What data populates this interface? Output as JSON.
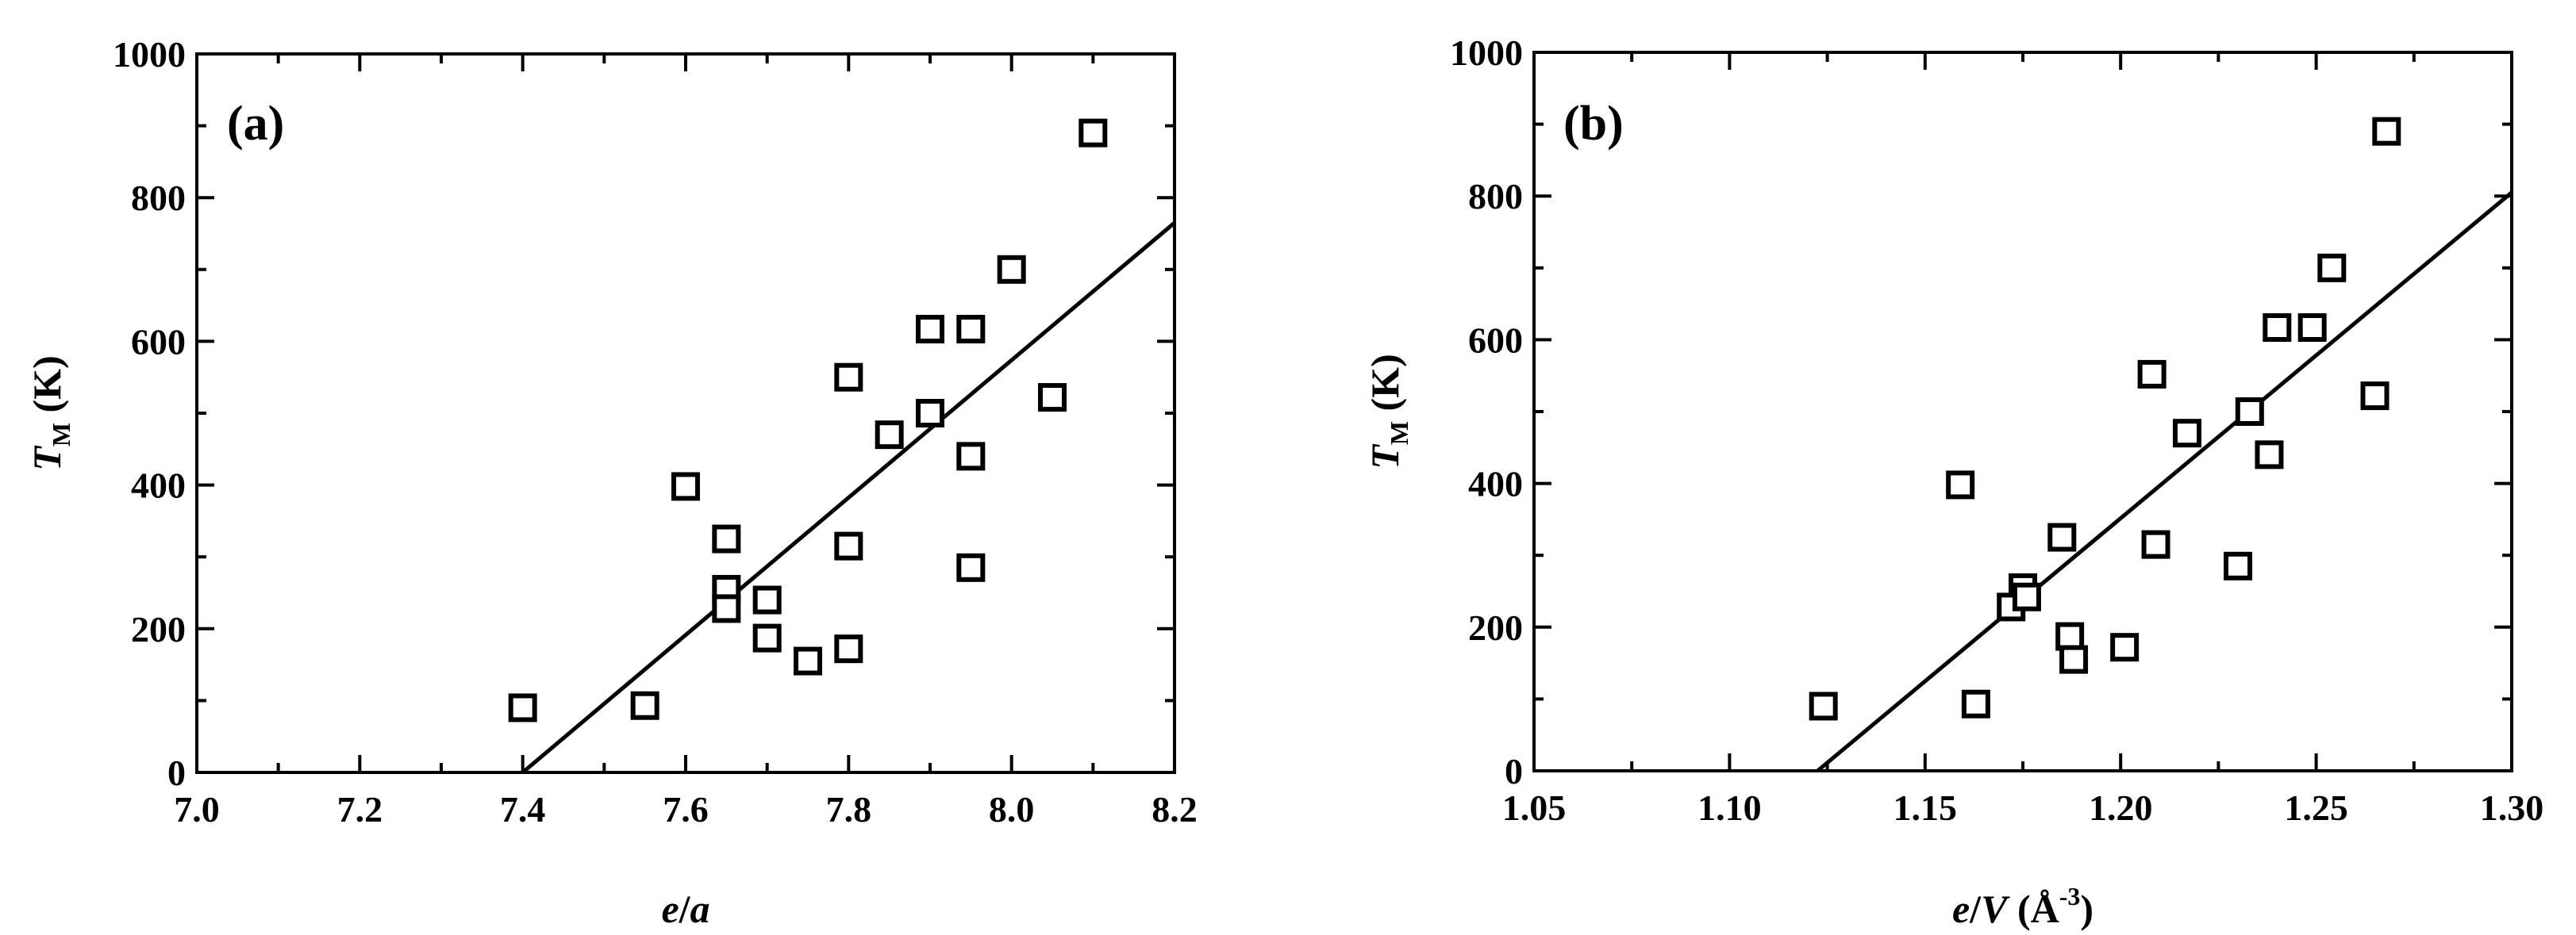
{
  "chart_data": [
    {
      "type": "scatter",
      "panel_label": "(a)",
      "xlabel": {
        "var": "e",
        "slash": "/",
        "var2": "a"
      },
      "ylabel": {
        "var": "T",
        "sub": "M",
        "unit": " (K)"
      },
      "xlim": [
        7.0,
        8.2
      ],
      "ylim": [
        0,
        1000
      ],
      "xticks": [
        "7.0",
        "7.2",
        "7.4",
        "7.6",
        "7.8",
        "8.0",
        "8.2"
      ],
      "yticks": [
        "0",
        "200",
        "400",
        "600",
        "800",
        "1000"
      ],
      "xtick_values": [
        7.0,
        7.2,
        7.4,
        7.6,
        7.8,
        8.0,
        8.2
      ],
      "ytick_values": [
        0,
        200,
        400,
        600,
        800,
        1000
      ],
      "points": [
        [
          7.4,
          90
        ],
        [
          7.55,
          93
        ],
        [
          7.6,
          398
        ],
        [
          7.65,
          325
        ],
        [
          7.65,
          255
        ],
        [
          7.65,
          228
        ],
        [
          7.7,
          240
        ],
        [
          7.7,
          187
        ],
        [
          7.75,
          155
        ],
        [
          7.8,
          550
        ],
        [
          7.8,
          315
        ],
        [
          7.8,
          172
        ],
        [
          7.85,
          470
        ],
        [
          7.9,
          617
        ],
        [
          7.9,
          500
        ],
        [
          7.95,
          617
        ],
        [
          7.95,
          440
        ],
        [
          7.95,
          285
        ],
        [
          8.0,
          700
        ],
        [
          8.05,
          522
        ],
        [
          8.1,
          890
        ]
      ],
      "fit_line": [
        [
          7.4,
          0
        ],
        [
          8.2,
          765
        ]
      ],
      "marker": "open-square"
    },
    {
      "type": "scatter",
      "panel_label": "(b)",
      "xlabel": {
        "var": "e",
        "slash": "/",
        "var2": "V",
        "unit_open": " (Å",
        "unit_sup": "-3",
        "unit_close": ")"
      },
      "ylabel": {
        "var": "T",
        "sub": "M",
        "unit": " (K)"
      },
      "xlim": [
        1.05,
        1.3
      ],
      "ylim": [
        0,
        1000
      ],
      "xticks": [
        "1.05",
        "1.10",
        "1.15",
        "1.20",
        "1.25",
        "1.30"
      ],
      "yticks": [
        "0",
        "200",
        "400",
        "600",
        "800",
        "1000"
      ],
      "xtick_values": [
        1.05,
        1.1,
        1.15,
        1.2,
        1.25,
        1.3
      ],
      "ytick_values": [
        0,
        200,
        400,
        600,
        800,
        1000
      ],
      "points": [
        [
          1.124,
          90
        ],
        [
          1.163,
          93
        ],
        [
          1.159,
          398
        ],
        [
          1.185,
          325
        ],
        [
          1.175,
          255
        ],
        [
          1.172,
          228
        ],
        [
          1.176,
          242
        ],
        [
          1.187,
          187
        ],
        [
          1.188,
          155
        ],
        [
          1.201,
          172
        ],
        [
          1.208,
          552
        ],
        [
          1.209,
          315
        ],
        [
          1.217,
          470
        ],
        [
          1.23,
          285
        ],
        [
          1.233,
          500
        ],
        [
          1.238,
          440
        ],
        [
          1.24,
          617
        ],
        [
          1.249,
          617
        ],
        [
          1.254,
          700
        ],
        [
          1.265,
          522
        ],
        [
          1.268,
          890
        ]
      ],
      "fit_line": [
        [
          1.1225,
          0
        ],
        [
          1.3,
          805
        ]
      ],
      "marker": "open-square"
    }
  ]
}
